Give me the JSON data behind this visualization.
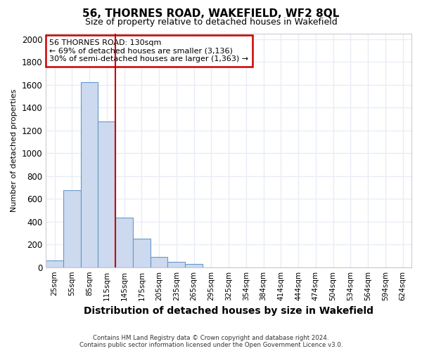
{
  "title": "56, THORNES ROAD, WAKEFIELD, WF2 8QL",
  "subtitle": "Size of property relative to detached houses in Wakefield",
  "xlabel": "Distribution of detached houses by size in Wakefield",
  "ylabel": "Number of detached properties",
  "footnote1": "Contains HM Land Registry data © Crown copyright and database right 2024.",
  "footnote2": "Contains public sector information licensed under the Open Government Licence v3.0.",
  "bar_color": "#ccd9ee",
  "bar_edge_color": "#6699cc",
  "categories": [
    "25sqm",
    "55sqm",
    "85sqm",
    "115sqm",
    "145sqm",
    "175sqm",
    "205sqm",
    "235sqm",
    "265sqm",
    "295sqm",
    "325sqm",
    "354sqm",
    "384sqm",
    "414sqm",
    "444sqm",
    "474sqm",
    "504sqm",
    "534sqm",
    "564sqm",
    "594sqm",
    "624sqm"
  ],
  "values": [
    62,
    675,
    1625,
    1280,
    435,
    250,
    88,
    50,
    28,
    0,
    0,
    0,
    0,
    0,
    0,
    0,
    0,
    0,
    0,
    0,
    0
  ],
  "ylim": [
    0,
    2050
  ],
  "yticks": [
    0,
    200,
    400,
    600,
    800,
    1000,
    1200,
    1400,
    1600,
    1800,
    2000
  ],
  "property_label": "56 THORNES ROAD: 130sqm",
  "annotation_line1": "← 69% of detached houses are smaller (3,136)",
  "annotation_line2": "30% of semi-detached houses are larger (1,363) →",
  "annotation_box_color": "#cc0000",
  "vline_color": "#cc0000",
  "vline_x": 3.5,
  "background_color": "#ffffff",
  "grid_color": "#e8edf5",
  "title_fontsize": 11,
  "subtitle_fontsize": 9,
  "ylabel_fontsize": 8,
  "xlabel_fontsize": 10
}
